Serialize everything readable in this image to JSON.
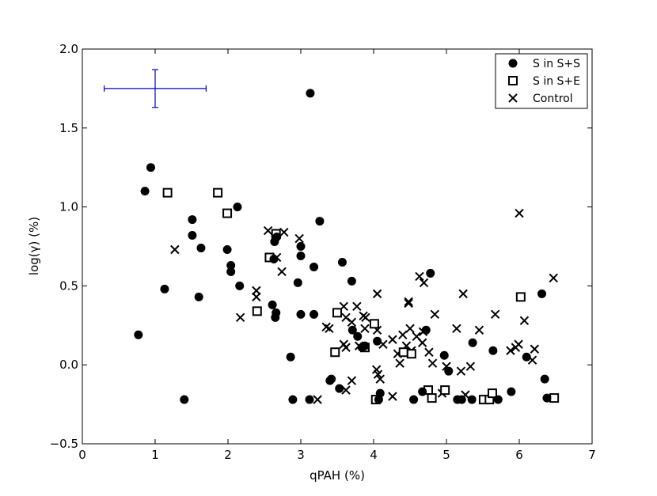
{
  "chart_data": {
    "type": "scatter",
    "xlabel": "qPAH (%)",
    "ylabel": "log(γ) (%)",
    "xlim": [
      0,
      7
    ],
    "ylim": [
      -0.5,
      2.0
    ],
    "x_ticks": [
      "0",
      "1",
      "2",
      "3",
      "4",
      "5",
      "6",
      "7"
    ],
    "y_ticks": [
      "−0.5",
      "0.0",
      "0.5",
      "1.0",
      "1.5",
      "2.0"
    ],
    "grid": false,
    "legend_position": "top-right",
    "error_bar": {
      "x": 1.0,
      "y": 1.75,
      "xerr": 0.7,
      "yerr": 0.12,
      "color": "#0000cc"
    },
    "series": [
      {
        "name": "S in S+S",
        "marker": "filled-circle",
        "points": [
          [
            0.77,
            0.19
          ],
          [
            0.86,
            1.1
          ],
          [
            0.94,
            1.25
          ],
          [
            1.13,
            0.48
          ],
          [
            1.4,
            -0.22
          ],
          [
            1.51,
            0.92
          ],
          [
            1.51,
            0.82
          ],
          [
            1.6,
            0.43
          ],
          [
            1.63,
            0.74
          ],
          [
            1.99,
            0.73
          ],
          [
            2.04,
            0.63
          ],
          [
            2.04,
            0.59
          ],
          [
            2.13,
            1.0
          ],
          [
            2.16,
            0.5
          ],
          [
            2.61,
            0.38
          ],
          [
            2.63,
            0.67
          ],
          [
            2.64,
            0.78
          ],
          [
            2.65,
            0.3
          ],
          [
            2.66,
            0.33
          ],
          [
            2.67,
            0.81
          ],
          [
            2.86,
            0.05
          ],
          [
            2.89,
            -0.22
          ],
          [
            2.96,
            0.52
          ],
          [
            3.0,
            0.75
          ],
          [
            3.0,
            0.69
          ],
          [
            3.0,
            0.32
          ],
          [
            3.12,
            -0.22
          ],
          [
            3.13,
            1.72
          ],
          [
            3.18,
            0.62
          ],
          [
            3.18,
            0.32
          ],
          [
            3.26,
            0.91
          ],
          [
            3.4,
            -0.1
          ],
          [
            3.42,
            -0.09
          ],
          [
            3.53,
            -0.15
          ],
          [
            3.57,
            0.65
          ],
          [
            3.7,
            0.53
          ],
          [
            3.71,
            0.22
          ],
          [
            3.78,
            0.18
          ],
          [
            3.84,
            0.11
          ],
          [
            3.88,
            0.12
          ],
          [
            4.05,
            0.15
          ],
          [
            4.07,
            -0.22
          ],
          [
            4.09,
            -0.18
          ],
          [
            4.55,
            -0.22
          ],
          [
            4.67,
            -0.17
          ],
          [
            4.72,
            0.22
          ],
          [
            4.78,
            0.58
          ],
          [
            4.97,
            0.06
          ],
          [
            5.03,
            -0.04
          ],
          [
            5.15,
            -0.22
          ],
          [
            5.21,
            -0.22
          ],
          [
            5.35,
            -0.22
          ],
          [
            5.36,
            0.14
          ],
          [
            5.64,
            0.09
          ],
          [
            5.71,
            -0.22
          ],
          [
            5.89,
            -0.17
          ],
          [
            6.1,
            0.05
          ],
          [
            6.31,
            0.45
          ],
          [
            6.35,
            -0.09
          ],
          [
            6.38,
            -0.21
          ]
        ]
      },
      {
        "name": "S in S+E",
        "marker": "open-square",
        "points": [
          [
            1.17,
            1.09
          ],
          [
            1.86,
            1.09
          ],
          [
            1.99,
            0.96
          ],
          [
            2.4,
            0.34
          ],
          [
            2.57,
            0.68
          ],
          [
            2.66,
            0.83
          ],
          [
            3.47,
            0.08
          ],
          [
            3.5,
            0.33
          ],
          [
            3.88,
            0.11
          ],
          [
            4.01,
            0.26
          ],
          [
            4.03,
            -0.22
          ],
          [
            4.41,
            0.08
          ],
          [
            4.52,
            0.07
          ],
          [
            4.75,
            -0.16
          ],
          [
            4.8,
            -0.21
          ],
          [
            4.98,
            -0.16
          ],
          [
            5.51,
            -0.22
          ],
          [
            5.59,
            -0.22
          ],
          [
            5.63,
            -0.18
          ],
          [
            6.02,
            0.43
          ],
          [
            6.48,
            -0.21
          ]
        ]
      },
      {
        "name": "Control",
        "marker": "x",
        "points": [
          [
            1.27,
            0.73
          ],
          [
            2.17,
            0.3
          ],
          [
            2.39,
            0.47
          ],
          [
            2.39,
            0.43
          ],
          [
            2.55,
            0.85
          ],
          [
            2.67,
            0.68
          ],
          [
            2.74,
            0.59
          ],
          [
            2.77,
            0.84
          ],
          [
            2.98,
            0.8
          ],
          [
            3.23,
            -0.22
          ],
          [
            3.35,
            0.24
          ],
          [
            3.39,
            0.23
          ],
          [
            3.59,
            0.37
          ],
          [
            3.59,
            0.13
          ],
          [
            3.62,
            0.3
          ],
          [
            3.62,
            0.11
          ],
          [
            3.62,
            -0.16
          ],
          [
            3.7,
            0.27
          ],
          [
            3.7,
            -0.1
          ],
          [
            3.77,
            0.37
          ],
          [
            3.8,
            0.12
          ],
          [
            3.86,
            0.31
          ],
          [
            3.88,
            0.23
          ],
          [
            3.89,
            0.3
          ],
          [
            4.04,
            -0.03
          ],
          [
            4.05,
            0.45
          ],
          [
            4.05,
            0.22
          ],
          [
            4.06,
            -0.06
          ],
          [
            4.09,
            -0.09
          ],
          [
            4.13,
            0.13
          ],
          [
            4.26,
            0.16
          ],
          [
            4.26,
            -0.2
          ],
          [
            4.33,
            0.07
          ],
          [
            4.36,
            0.01
          ],
          [
            4.4,
            0.19
          ],
          [
            4.45,
            0.12
          ],
          [
            4.48,
            0.4
          ],
          [
            4.48,
            0.39
          ],
          [
            4.5,
            0.23
          ],
          [
            4.52,
            0.09
          ],
          [
            4.59,
            0.18
          ],
          [
            4.63,
            0.56
          ],
          [
            4.67,
            0.14
          ],
          [
            4.68,
            0.21
          ],
          [
            4.69,
            0.52
          ],
          [
            4.76,
            0.08
          ],
          [
            4.81,
            0.01
          ],
          [
            4.84,
            0.32
          ],
          [
            4.94,
            -0.18
          ],
          [
            5.0,
            -0.01
          ],
          [
            5.14,
            0.23
          ],
          [
            5.2,
            -0.04
          ],
          [
            5.23,
            0.45
          ],
          [
            5.26,
            -0.19
          ],
          [
            5.33,
            -0.01
          ],
          [
            5.45,
            0.22
          ],
          [
            5.67,
            0.32
          ],
          [
            5.88,
            0.09
          ],
          [
            5.95,
            0.11
          ],
          [
            5.99,
            0.13
          ],
          [
            6.0,
            0.96
          ],
          [
            6.07,
            0.28
          ],
          [
            6.18,
            0.03
          ],
          [
            6.21,
            0.1
          ],
          [
            6.47,
            0.55
          ]
        ]
      }
    ]
  }
}
